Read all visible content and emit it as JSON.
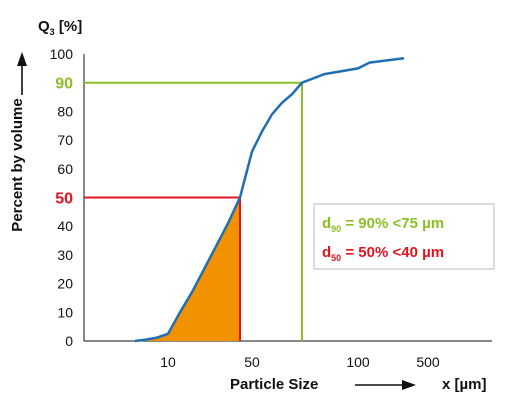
{
  "chart_data": {
    "type": "line",
    "ylabel_symbol": "Q",
    "ylabel_sub": "3",
    "ylabel_unit": " [%]",
    "y_axis_title": "Percent by volume",
    "x_axis_title": "Particle Size",
    "x_unit": "x [µm]",
    "ylim": [
      0,
      100
    ],
    "y_ticks": [
      "0",
      "10",
      "20",
      "30",
      "40",
      "50",
      "60",
      "70",
      "80",
      "90",
      "100"
    ],
    "x_ticks": [
      {
        "label": "10",
        "value": 10
      },
      {
        "label": "50",
        "value": 50
      },
      {
        "label": "100",
        "value": 100
      },
      {
        "label": "500",
        "value": 500
      }
    ],
    "series": [
      {
        "color": "#1f6fb2",
        "points": [
          [
            7,
            0
          ],
          [
            8,
            0.5
          ],
          [
            9,
            1.2
          ],
          [
            10,
            2.5
          ],
          [
            12,
            5.5
          ],
          [
            15,
            10
          ],
          [
            20,
            17
          ],
          [
            25,
            25
          ],
          [
            30,
            33
          ],
          [
            35,
            41
          ],
          [
            40,
            50
          ],
          [
            45,
            58
          ],
          [
            50,
            66
          ],
          [
            55,
            73
          ],
          [
            60,
            79
          ],
          [
            65,
            83
          ],
          [
            70,
            86
          ],
          [
            75,
            90
          ],
          [
            85,
            93
          ],
          [
            100,
            95
          ],
          [
            150,
            97
          ],
          [
            300,
            98.5
          ]
        ]
      }
    ],
    "highlights": [
      {
        "pct": 90,
        "size": 75,
        "color": "#8cbf26"
      },
      {
        "pct": 50,
        "size": 40,
        "color": "#e0141e"
      }
    ],
    "filled_area_color": "#f39200",
    "annotations": [
      {
        "d": "d",
        "sub": "90",
        "text": " = 90% <75 µm",
        "color": "#8cbf26"
      },
      {
        "d": "d",
        "sub": "50",
        "text": " = 50% <40 µm",
        "color": "#e0141e"
      }
    ],
    "highlight_tick_labels": [
      {
        "label": "90",
        "value": 90,
        "color": "#8cbf26"
      },
      {
        "label": "50",
        "value": 50,
        "color": "#e0141e"
      }
    ]
  }
}
